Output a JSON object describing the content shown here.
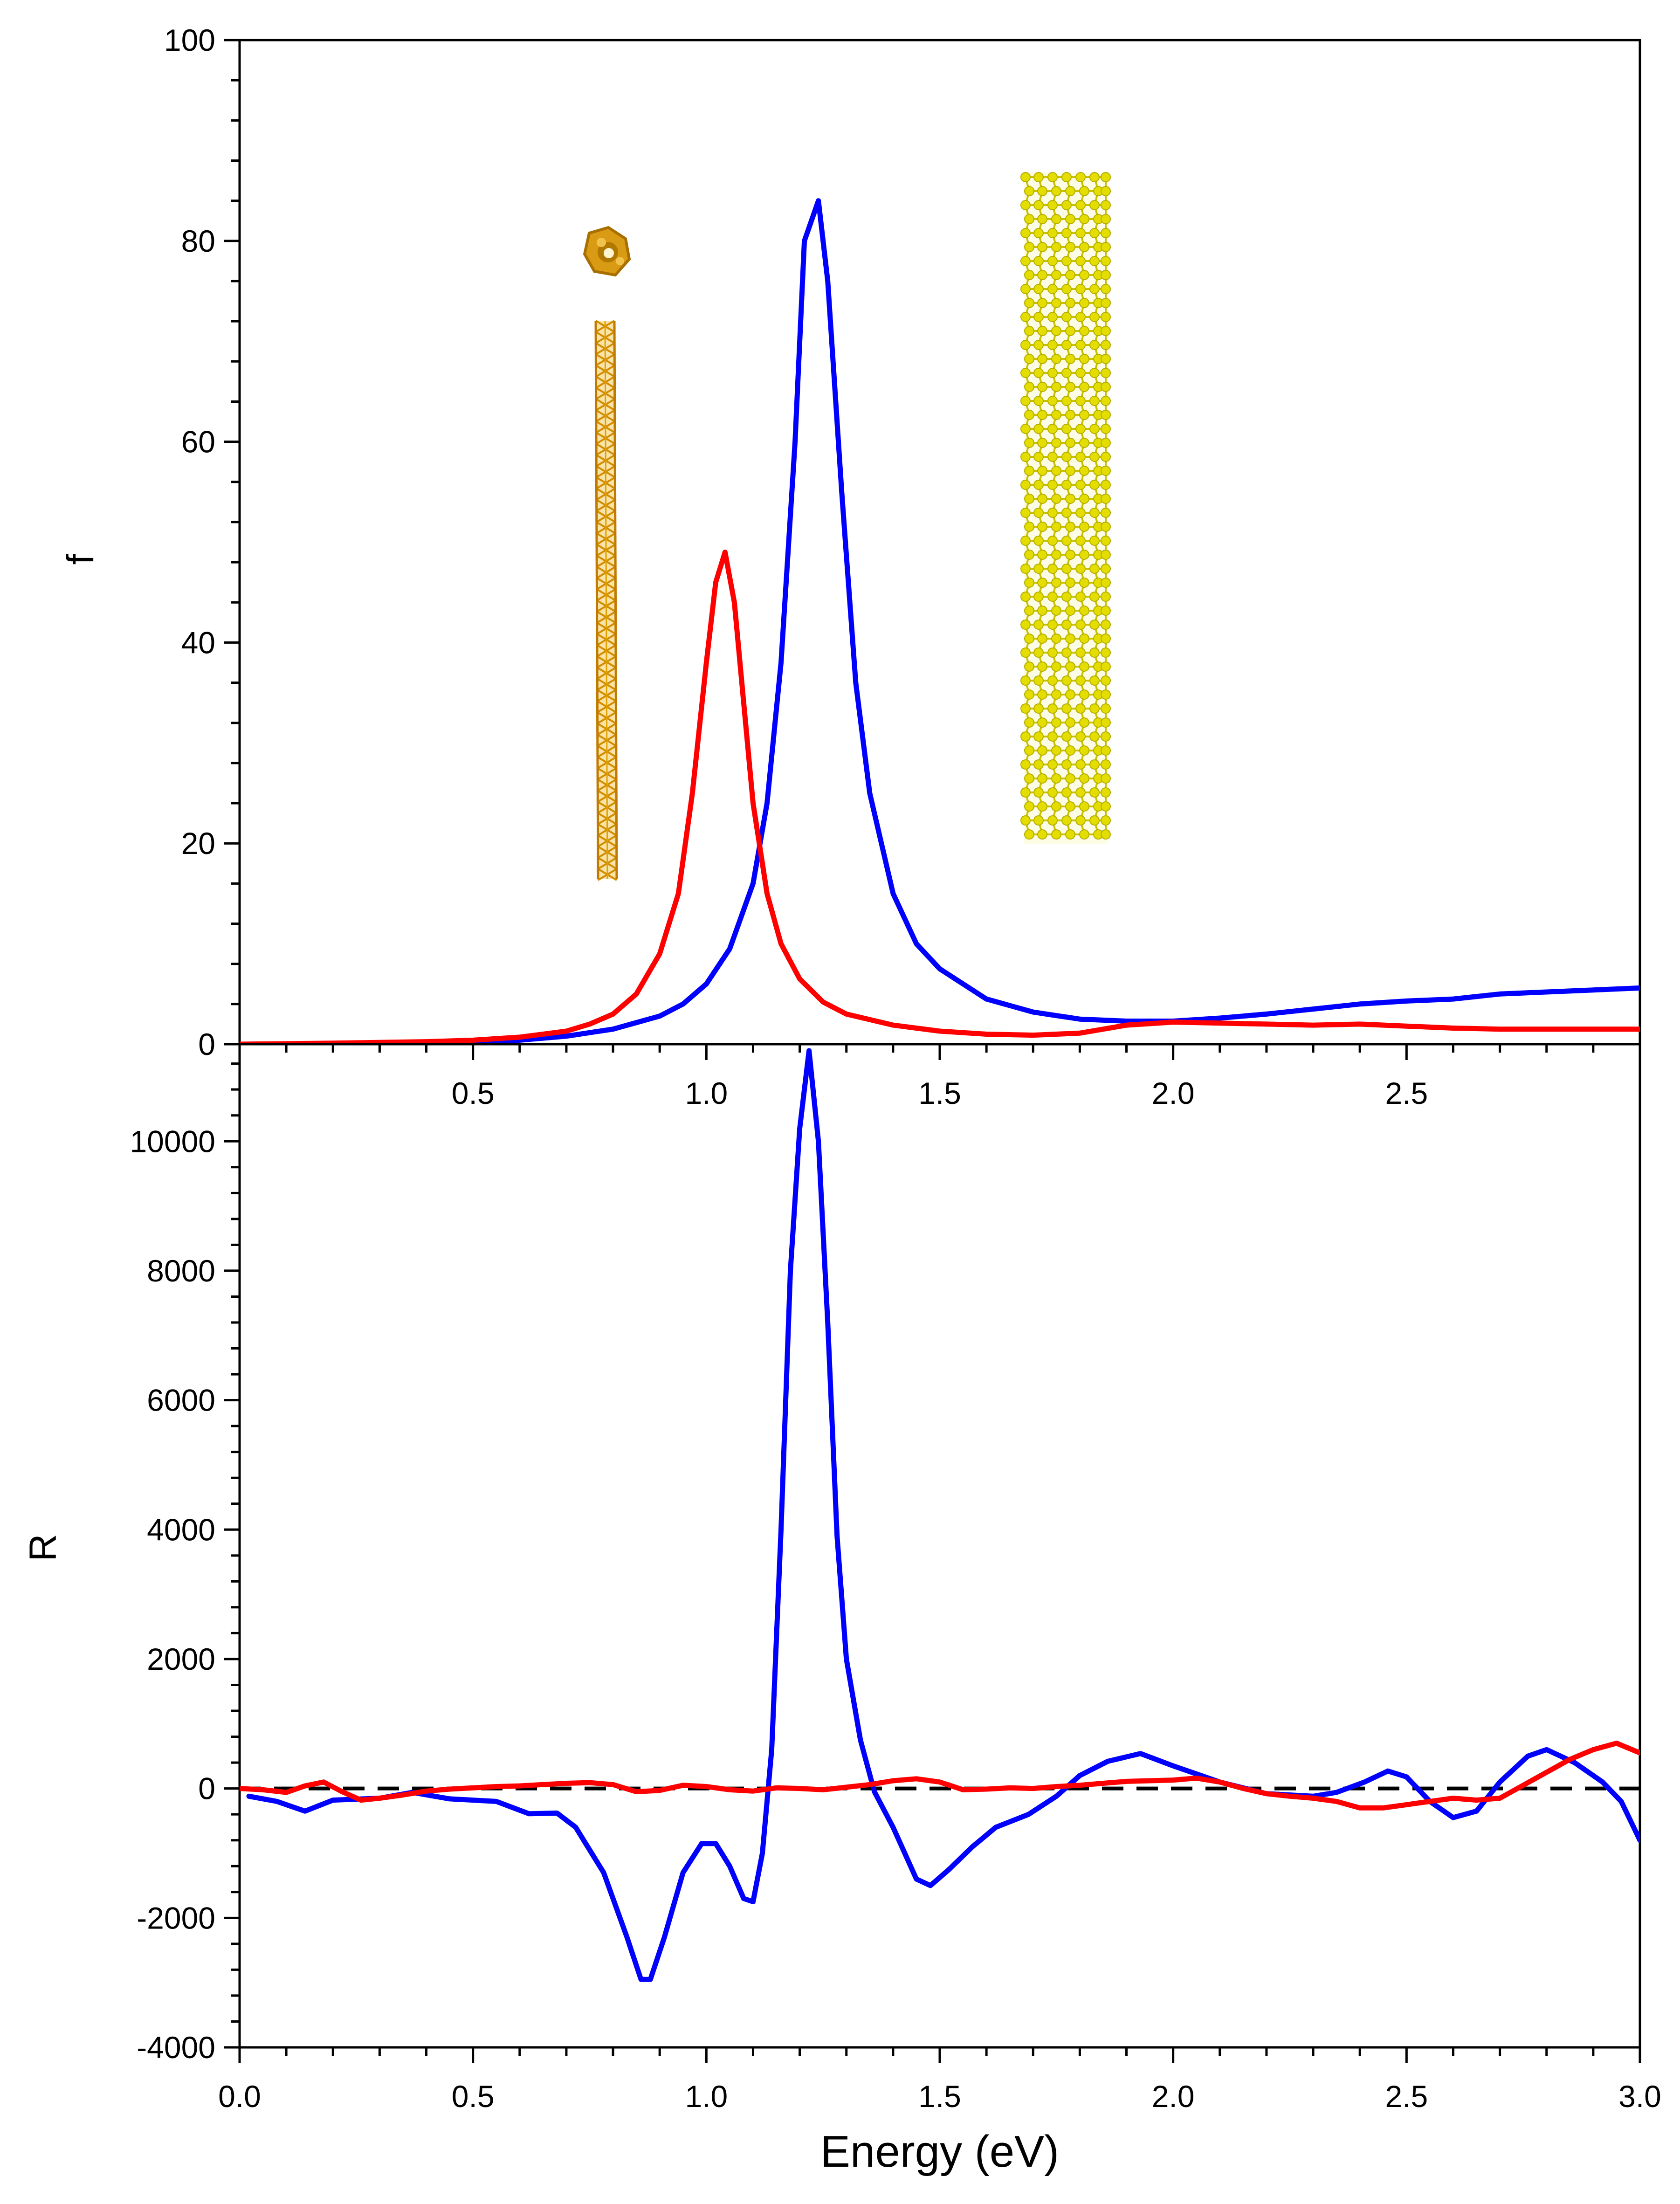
{
  "chart_data": [
    {
      "type": "line",
      "panel": "top",
      "ylabel": "f",
      "xlabel": "",
      "xlim": [
        0,
        3
      ],
      "ylim": [
        0,
        100
      ],
      "yticks": [
        0,
        20,
        40,
        60,
        80,
        100
      ],
      "xticks": [
        0.5,
        1.0,
        1.5,
        2.0,
        2.5
      ],
      "xtick_labels": [
        "0.5",
        "1.0",
        "1.5",
        "2.0",
        "2.5"
      ],
      "ytick_labels": [
        "0",
        "20",
        "40",
        "60",
        "80",
        "100"
      ],
      "series": [
        {
          "name": "blue",
          "color": "#0000ff",
          "x": [
            0.0,
            0.2,
            0.4,
            0.5,
            0.6,
            0.7,
            0.8,
            0.9,
            0.95,
            1.0,
            1.05,
            1.1,
            1.13,
            1.16,
            1.19,
            1.21,
            1.24,
            1.26,
            1.29,
            1.32,
            1.35,
            1.4,
            1.45,
            1.5,
            1.6,
            1.7,
            1.8,
            1.9,
            2.0,
            2.1,
            2.2,
            2.3,
            2.4,
            2.5,
            2.6,
            2.7,
            2.8,
            2.9,
            3.0
          ],
          "y": [
            0.0,
            0.05,
            0.1,
            0.2,
            0.4,
            0.8,
            1.5,
            2.8,
            4.0,
            6.0,
            9.5,
            16.0,
            24.0,
            38.0,
            60.0,
            80.0,
            84.0,
            76.0,
            55.0,
            36.0,
            25.0,
            15.0,
            10.0,
            7.5,
            4.5,
            3.2,
            2.5,
            2.3,
            2.3,
            2.6,
            3.0,
            3.5,
            4.0,
            4.3,
            4.5,
            5.0,
            5.2,
            5.4,
            5.6
          ]
        },
        {
          "name": "red",
          "color": "#ff0000",
          "x": [
            0.0,
            0.2,
            0.4,
            0.5,
            0.6,
            0.7,
            0.75,
            0.8,
            0.85,
            0.9,
            0.94,
            0.97,
            1.0,
            1.02,
            1.04,
            1.06,
            1.08,
            1.1,
            1.13,
            1.16,
            1.2,
            1.25,
            1.3,
            1.4,
            1.5,
            1.6,
            1.7,
            1.8,
            1.9,
            2.0,
            2.1,
            2.2,
            2.3,
            2.4,
            2.5,
            2.6,
            2.7,
            2.8,
            2.9,
            3.0
          ],
          "y": [
            0.0,
            0.1,
            0.25,
            0.4,
            0.7,
            1.3,
            2.0,
            3.0,
            5.0,
            9.0,
            15.0,
            25.0,
            38.0,
            46.0,
            49.0,
            44.0,
            34.0,
            24.0,
            15.0,
            10.0,
            6.5,
            4.2,
            3.0,
            1.9,
            1.3,
            1.0,
            0.9,
            1.1,
            1.9,
            2.2,
            2.1,
            2.0,
            1.9,
            2.0,
            1.8,
            1.6,
            1.5,
            1.5,
            1.5,
            1.5
          ]
        }
      ],
      "insets": [
        "gold nanotube (top view and side view)",
        "gold nanotube (side view, ball-and-stick)"
      ]
    },
    {
      "type": "line",
      "panel": "bottom",
      "ylabel": "R",
      "xlabel": "Energy (eV)",
      "xlim": [
        0,
        3
      ],
      "ylim": [
        -4000,
        11500
      ],
      "yticks": [
        -4000,
        -2000,
        0,
        2000,
        4000,
        6000,
        8000,
        10000
      ],
      "ytick_labels": [
        "-4000",
        "-2000",
        "0",
        "2000",
        "4000",
        "6000",
        "8000",
        "10000"
      ],
      "xticks": [
        0.0,
        0.5,
        1.0,
        1.5,
        2.0,
        2.5,
        3.0
      ],
      "xtick_labels": [
        "0.0",
        "0.5",
        "1.0",
        "1.5",
        "2.0",
        "2.5",
        "3.0"
      ],
      "reference_line": {
        "y": 0,
        "style": "dashed",
        "color": "#000000"
      },
      "series": [
        {
          "name": "blue",
          "color": "#0000ff",
          "x": [
            0.02,
            0.08,
            0.14,
            0.2,
            0.3,
            0.37,
            0.45,
            0.55,
            0.62,
            0.68,
            0.72,
            0.78,
            0.83,
            0.86,
            0.88,
            0.91,
            0.95,
            0.99,
            1.02,
            1.05,
            1.08,
            1.1,
            1.12,
            1.14,
            1.16,
            1.18,
            1.2,
            1.22,
            1.24,
            1.26,
            1.28,
            1.3,
            1.33,
            1.36,
            1.4,
            1.45,
            1.48,
            1.52,
            1.57,
            1.62,
            1.69,
            1.75,
            1.8,
            1.86,
            1.93,
            2.0,
            2.1,
            2.2,
            2.3,
            2.35,
            2.41,
            2.46,
            2.5,
            2.55,
            2.6,
            2.65,
            2.7,
            2.76,
            2.8,
            2.86,
            2.92,
            2.96,
            3.0
          ],
          "y": [
            -120,
            -200,
            -350,
            -180,
            -150,
            -60,
            -160,
            -200,
            -390,
            -380,
            -600,
            -1300,
            -2300,
            -2950,
            -2950,
            -2300,
            -1300,
            -850,
            -850,
            -1200,
            -1700,
            -1750,
            -1000,
            600,
            4000,
            8000,
            10200,
            11400,
            10000,
            7200,
            3900,
            2000,
            750,
            -50,
            -600,
            -1400,
            -1500,
            -1250,
            -900,
            -600,
            -400,
            -120,
            200,
            420,
            540,
            350,
            100,
            -80,
            -120,
            -60,
            100,
            270,
            180,
            -200,
            -450,
            -350,
            100,
            500,
            600,
            400,
            100,
            -200,
            -800
          ]
        },
        {
          "name": "red",
          "color": "#ff0000",
          "x": [
            0.0,
            0.05,
            0.1,
            0.14,
            0.18,
            0.22,
            0.26,
            0.3,
            0.35,
            0.4,
            0.45,
            0.5,
            0.55,
            0.6,
            0.65,
            0.7,
            0.75,
            0.8,
            0.85,
            0.9,
            0.95,
            1.0,
            1.05,
            1.1,
            1.15,
            1.2,
            1.25,
            1.3,
            1.35,
            1.4,
            1.45,
            1.5,
            1.55,
            1.6,
            1.65,
            1.7,
            1.75,
            1.8,
            1.85,
            1.9,
            1.95,
            2.0,
            2.05,
            2.1,
            2.15,
            2.2,
            2.25,
            2.3,
            2.35,
            2.4,
            2.45,
            2.5,
            2.55,
            2.6,
            2.65,
            2.7,
            2.75,
            2.8,
            2.85,
            2.9,
            2.95,
            3.0
          ],
          "y": [
            0,
            -20,
            -60,
            40,
            100,
            -50,
            -180,
            -150,
            -100,
            -40,
            -10,
            10,
            30,
            40,
            60,
            80,
            90,
            60,
            -50,
            -30,
            50,
            30,
            -20,
            -40,
            10,
            0,
            -20,
            20,
            60,
            120,
            150,
            100,
            -20,
            -10,
            10,
            0,
            30,
            50,
            80,
            110,
            120,
            130,
            160,
            100,
            0,
            -80,
            -120,
            -150,
            -200,
            -300,
            -300,
            -250,
            -200,
            -150,
            -180,
            -150,
            50,
            250,
            450,
            600,
            700,
            550
          ]
        }
      ]
    }
  ]
}
